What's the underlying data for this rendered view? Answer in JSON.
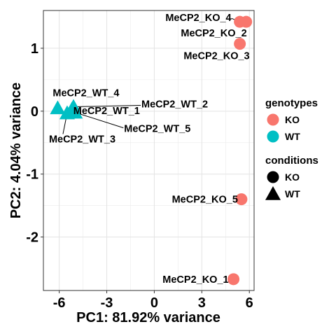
{
  "chart_data": {
    "type": "scatter",
    "title": "",
    "xlabel": "PC1: 81.92% variance",
    "ylabel": "PC2: 4.04% variance",
    "xlim": [
      -7.0,
      6.3
    ],
    "ylim": [
      -2.85,
      1.6
    ],
    "x_ticks": [
      -6,
      -3,
      0,
      3,
      6
    ],
    "x_tick_labels": [
      "-6",
      "-3",
      "0",
      "3",
      "6"
    ],
    "y_ticks": [
      -2,
      -1,
      0,
      1
    ],
    "y_tick_labels": [
      "-2",
      "-1",
      "0",
      "1"
    ],
    "grid": true,
    "legend_position": "right",
    "colors": {
      "KO": "#F8766D",
      "WT": "#00BFC4"
    },
    "legends": [
      {
        "title": "genotypes",
        "kind": "color",
        "entries": [
          "KO",
          "WT"
        ]
      },
      {
        "title": "conditions",
        "kind": "shape",
        "entries": [
          "KO",
          "WT"
        ]
      }
    ],
    "points": [
      {
        "label": "MeCP2_KO_4",
        "x": 5.4,
        "y": 1.42,
        "genotype": "KO",
        "condition": "KO"
      },
      {
        "label": "MeCP2_KO_2",
        "x": 5.8,
        "y": 1.42,
        "genotype": "KO",
        "condition": "KO"
      },
      {
        "label": "MeCP2_KO_3",
        "x": 5.4,
        "y": 1.07,
        "genotype": "KO",
        "condition": "KO"
      },
      {
        "label": "MeCP2_KO_5",
        "x": 5.5,
        "y": -1.4,
        "genotype": "KO",
        "condition": "KO"
      },
      {
        "label": "MeCP2_KO_1",
        "x": 5.0,
        "y": -2.67,
        "genotype": "KO",
        "condition": "KO"
      },
      {
        "label": "MeCP2_WT_4",
        "x": -6.1,
        "y": 0.05,
        "genotype": "WT",
        "condition": "WT"
      },
      {
        "label": "MeCP2_WT_2",
        "x": -5.1,
        "y": 0.07,
        "genotype": "WT",
        "condition": "WT"
      },
      {
        "label": "MeCP2_WT_1",
        "x": -5.2,
        "y": 0.03,
        "genotype": "WT",
        "condition": "WT"
      },
      {
        "label": "MeCP2_WT_5",
        "x": -5.0,
        "y": -0.02,
        "genotype": "WT",
        "condition": "WT"
      },
      {
        "label": "MeCP2_WT_3",
        "x": -5.5,
        "y": -0.03,
        "genotype": "WT",
        "condition": "WT"
      }
    ]
  }
}
